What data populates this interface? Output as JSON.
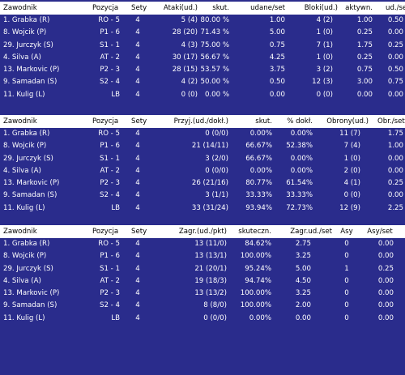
{
  "attack": {
    "headers": [
      "Zawodnik",
      "Pozycja",
      "Sety",
      "Ataki(ud.)",
      "skut.",
      "udane/set",
      "Bloki(ud.)",
      "aktywn.",
      "ud./set"
    ],
    "rows": [
      [
        "1. Grabka (R)",
        "RO - 5",
        "4",
        "5 (4)",
        "80.00 %",
        "1.00",
        "4 (2)",
        "1.00",
        "0.50"
      ],
      [
        "8. Wojcik (P)",
        "P1 - 6",
        "4",
        "28 (20)",
        "71.43 %",
        "5.00",
        "1 (0)",
        "0.25",
        "0.00"
      ],
      [
        "29. Jurczyk (S)",
        "S1 - 1",
        "4",
        "4 (3)",
        "75.00 %",
        "0.75",
        "7 (1)",
        "1.75",
        "0.25"
      ],
      [
        "4. Silva (A)",
        "AT - 2",
        "4",
        "30 (17)",
        "56.67 %",
        "4.25",
        "1 (0)",
        "0.25",
        "0.00"
      ],
      [
        "13. Markovic (P)",
        "P2 - 3",
        "4",
        "28 (15)",
        "53.57 %",
        "3.75",
        "3 (2)",
        "0.75",
        "0.50"
      ],
      [
        "9. Samadan (S)",
        "S2 - 4",
        "4",
        "4 (2)",
        "50.00 %",
        "0.50",
        "12 (3)",
        "3.00",
        "0.75"
      ],
      [
        "11. Kulig (L)",
        "LB",
        "4",
        "0 (0)",
        "0.00 %",
        "0.00",
        "0 (0)",
        "0.00",
        "0.00"
      ]
    ]
  },
  "reception": {
    "headers": [
      "Zawodnik",
      "Pozycja",
      "Sety",
      "Przyj.(ud./dokł.)",
      "skut.",
      "% dokł.",
      "Obrony(ud.)",
      "Obr./set"
    ],
    "rows": [
      [
        "1. Grabka (R)",
        "RO - 5",
        "4",
        "0 (0/0)",
        "0.00%",
        "0.00%",
        "11 (7)",
        "1.75"
      ],
      [
        "8. Wojcik (P)",
        "P1 - 6",
        "4",
        "21 (14/11)",
        "66.67%",
        "52.38%",
        "7 (4)",
        "1.00"
      ],
      [
        "29. Jurczyk (S)",
        "S1 - 1",
        "4",
        "3 (2/0)",
        "66.67%",
        "0.00%",
        "1 (0)",
        "0.00"
      ],
      [
        "4. Silva (A)",
        "AT - 2",
        "4",
        "0 (0/0)",
        "0.00%",
        "0.00%",
        "2 (0)",
        "0.00"
      ],
      [
        "13. Markovic (P)",
        "P2 - 3",
        "4",
        "26 (21/16)",
        "80.77%",
        "61.54%",
        "4 (1)",
        "0.25"
      ],
      [
        "9. Samadan (S)",
        "S2 - 4",
        "4",
        "3 (1/1)",
        "33.33%",
        "33.33%",
        "0 (0)",
        "0.00"
      ],
      [
        "11. Kulig (L)",
        "LB",
        "4",
        "33 (31/24)",
        "93.94%",
        "72.73%",
        "12 (9)",
        "2.25"
      ]
    ]
  },
  "serve": {
    "headers": [
      "Zawodnik",
      "Pozycja",
      "Sety",
      "Zagr.(ud./pkt)",
      "skuteczn.",
      "Zagr.ud./set",
      "Asy",
      "Asy/set"
    ],
    "rows": [
      [
        "1. Grabka (R)",
        "RO - 5",
        "4",
        "13 (11/0)",
        "84.62%",
        "2.75",
        "0",
        "0.00"
      ],
      [
        "8. Wojcik (P)",
        "P1 - 6",
        "4",
        "13 (13/1)",
        "100.00%",
        "3.25",
        "0",
        "0.00"
      ],
      [
        "29. Jurczyk (S)",
        "S1 - 1",
        "4",
        "21 (20/1)",
        "95.24%",
        "5.00",
        "1",
        "0.25"
      ],
      [
        "4. Silva (A)",
        "AT - 2",
        "4",
        "19 (18/3)",
        "94.74%",
        "4.50",
        "0",
        "0.00"
      ],
      [
        "13. Markovic (P)",
        "P2 - 3",
        "4",
        "13 (13/2)",
        "100.00%",
        "3.25",
        "0",
        "0.00"
      ],
      [
        "9. Samadan (S)",
        "S2 - 4",
        "4",
        "8 (8/0)",
        "100.00%",
        "2.00",
        "0",
        "0.00"
      ],
      [
        "11. Kulig (L)",
        "LB",
        "4",
        "0 (0/0)",
        "0.00%",
        "0.00",
        "0",
        "0.00"
      ]
    ]
  }
}
